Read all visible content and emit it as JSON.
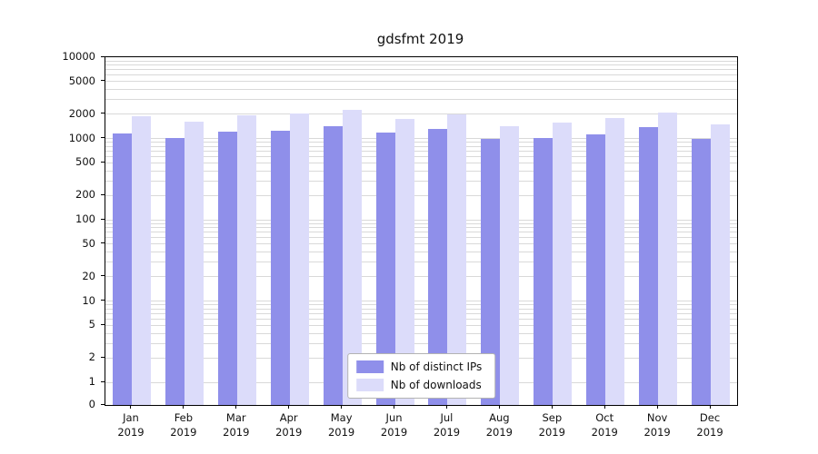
{
  "chart_data": {
    "type": "bar",
    "title": "gdsfmt 2019",
    "categories": [
      "Jan",
      "Feb",
      "Mar",
      "Apr",
      "May",
      "Jun",
      "Jul",
      "Aug",
      "Sep",
      "Oct",
      "Nov",
      "Dec"
    ],
    "year_label": "2019",
    "series": [
      {
        "name": "Nb of distinct IPs",
        "color": "#8f8fea",
        "values": [
          1150,
          1020,
          1220,
          1260,
          1420,
          1180,
          1300,
          980,
          1010,
          1120,
          1380,
          990
        ]
      },
      {
        "name": "Nb of downloads",
        "color": "#dcdcfa",
        "values": [
          1900,
          1620,
          1950,
          2050,
          2250,
          1720,
          2000,
          1430,
          1580,
          1780,
          2080,
          1480
        ]
      }
    ],
    "y_ticks": [
      0,
      1,
      2,
      5,
      10,
      20,
      50,
      100,
      200,
      500,
      1000,
      2000,
      5000,
      10000
    ],
    "y_scale": "symlog",
    "ylim": [
      0,
      10000
    ],
    "grid": "horizontal-minor",
    "legend_position": "bottom-center"
  }
}
